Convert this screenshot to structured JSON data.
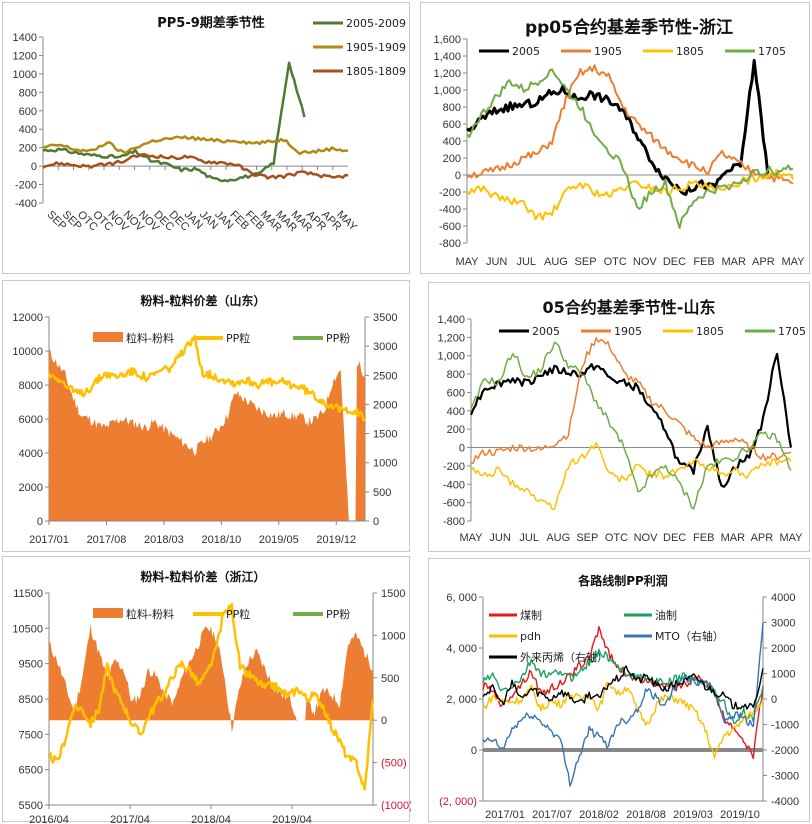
{
  "chart_data": [
    {
      "id": "p1",
      "type": "line",
      "title": "PP5-9期差季节性",
      "ylim": [
        -400,
        1400
      ],
      "yticks": [
        -400,
        -200,
        0,
        200,
        400,
        600,
        800,
        1000,
        1200,
        1400
      ],
      "ytick_labels": [
        "-400",
        "-200",
        "0",
        "200",
        "400",
        "600",
        "800",
        "1000",
        "1200",
        "1400"
      ],
      "x_labels": [
        "SEP",
        "SEP",
        "OTC",
        "OTC",
        "NOV",
        "NOV",
        "NOV",
        "DEC",
        "DEC",
        "JAN",
        "JAN",
        "JAN",
        "FEB",
        "FEB",
        "MAR",
        "MAR",
        "MAR",
        "APR",
        "APR",
        "MAY"
      ],
      "legend_position": "top-right",
      "n_points": 20,
      "series": [
        {
          "name": "2005-2009",
          "color": "#4e7a34",
          "values": [
            170,
            180,
            150,
            120,
            110,
            95,
            160,
            60,
            20,
            -40,
            -30,
            -140,
            -150,
            -120,
            -90,
            40,
            1130,
            530,
            null,
            null
          ]
        },
        {
          "name": "1905-1909",
          "color": "#b08a12",
          "values": [
            200,
            230,
            180,
            160,
            260,
            140,
            220,
            280,
            300,
            310,
            290,
            270,
            280,
            250,
            260,
            290,
            150,
            160,
            190,
            170
          ]
        },
        {
          "name": "1805-1809",
          "color": "#a6501b",
          "values": [
            0,
            30,
            10,
            -5,
            20,
            50,
            120,
            110,
            90,
            100,
            50,
            40,
            20,
            -80,
            -120,
            -110,
            -70,
            -90,
            -130,
            -100
          ]
        }
      ]
    },
    {
      "id": "p2",
      "type": "line",
      "title": "pp05合约基差季节性-浙江",
      "ylim": [
        -800,
        1600
      ],
      "yticks": [
        -800,
        -600,
        -400,
        -200,
        0,
        200,
        400,
        600,
        800,
        1000,
        1200,
        1400,
        1600
      ],
      "ytick_labels": [
        "-800",
        "-600",
        "-400",
        "-200",
        "0",
        "200",
        "400",
        "600",
        "800",
        "1,000",
        "1,200",
        "1,400",
        "1,600"
      ],
      "x_labels": [
        "MAY",
        "JUN",
        "JUL",
        "AUG",
        "SEP",
        "OTC",
        "NOV",
        "DEC",
        "FEB",
        "MAR",
        "APR",
        "MAY"
      ],
      "legend_position": "top",
      "n_points": 24,
      "series": [
        {
          "name": "2005",
          "color": "#000000",
          "width": 3,
          "values": [
            500,
            650,
            750,
            800,
            820,
            850,
            950,
            1000,
            900,
            950,
            900,
            820,
            600,
            300,
            50,
            -100,
            -200,
            -100,
            -150,
            50,
            100,
            1350,
            0,
            null
          ]
        },
        {
          "name": "1905",
          "color": "#ed7d31",
          "width": 2,
          "values": [
            0,
            20,
            50,
            120,
            200,
            250,
            400,
            900,
            1200,
            1250,
            1150,
            800,
            600,
            450,
            300,
            200,
            100,
            50,
            250,
            150,
            50,
            0,
            -50,
            -100
          ]
        },
        {
          "name": "1805",
          "color": "#ffc000",
          "width": 2,
          "values": [
            -200,
            -150,
            -250,
            -300,
            -350,
            -500,
            -450,
            -200,
            -100,
            -200,
            -250,
            -150,
            -100,
            -150,
            -200,
            -150,
            -100,
            -150,
            -200,
            -100,
            -50,
            0,
            20,
            -50
          ]
        },
        {
          "name": "1705",
          "color": "#70ad47",
          "width": 2,
          "values": [
            450,
            700,
            900,
            1100,
            1000,
            1100,
            1250,
            1000,
            800,
            500,
            300,
            100,
            -400,
            -200,
            -100,
            -600,
            -300,
            -200,
            -150,
            -100,
            0,
            50,
            50,
            80
          ]
        }
      ]
    },
    {
      "id": "p3",
      "type": "area",
      "title": "粉料-粒料价差（山东）",
      "ylim": [
        0,
        12000
      ],
      "yticks": [
        0,
        2000,
        4000,
        6000,
        8000,
        10000,
        12000
      ],
      "ytick_labels": [
        "0",
        "2000",
        "4000",
        "6000",
        "8000",
        "10000",
        "12000"
      ],
      "y2lim": [
        0,
        3500
      ],
      "y2ticks": [
        0,
        500,
        1000,
        1500,
        2000,
        2500,
        3000,
        3500
      ],
      "y2tick_labels": [
        "0",
        "500",
        "1000",
        "1500",
        "2000",
        "2500",
        "3000",
        "3500"
      ],
      "x_labels": [
        "2017/01",
        "2017/08",
        "2018/03",
        "2018/10",
        "2019/05",
        "2019/12"
      ],
      "legend_position": "top",
      "n_points": 40,
      "series": [
        {
          "name": "粒料-粉料",
          "kind": "area",
          "axis": "right",
          "color": "#ed7d31",
          "values": [
            2900,
            2700,
            2500,
            2100,
            1800,
            1750,
            1650,
            1600,
            1700,
            1750,
            1700,
            1650,
            1600,
            1700,
            1600,
            1500,
            1400,
            1300,
            1200,
            1350,
            1450,
            1600,
            1800,
            2200,
            2100,
            2000,
            1900,
            1850,
            1800,
            1850,
            1800,
            1800,
            1700,
            1750,
            1900,
            2400,
            2600,
            0,
            2750,
            2500
          ]
        },
        {
          "name": "PP粒",
          "kind": "line",
          "axis": "left",
          "color": "#ffc000",
          "values": [
            8600,
            8500,
            8000,
            7600,
            7500,
            7800,
            8300,
            8700,
            8500,
            8600,
            8800,
            8700,
            8400,
            8600,
            8900,
            9000,
            9600,
            10200,
            10700,
            8700,
            8600,
            8400,
            8300,
            8100,
            8300,
            8200,
            8000,
            8200,
            8100,
            8200,
            8000,
            7900,
            7600,
            7300,
            7000,
            6800,
            6500,
            6600,
            6400,
            6000
          ]
        },
        {
          "name": "PP粉",
          "kind": "line",
          "axis": "left",
          "color": "#70ad47",
          "values": []
        }
      ]
    },
    {
      "id": "p4",
      "type": "line",
      "title": "05合约基差季节性-山东",
      "ylim": [
        -800,
        1400
      ],
      "yticks": [
        -800,
        -600,
        -400,
        -200,
        0,
        200,
        400,
        600,
        800,
        1000,
        1200,
        1400
      ],
      "ytick_labels": [
        "-800",
        "-600",
        "-400",
        "-200",
        "0",
        "200",
        "400",
        "600",
        "800",
        "1,000",
        "1,200",
        "1,400"
      ],
      "x_labels": [
        "MAY",
        "JUN",
        "JUL",
        "AUG",
        "SEP",
        "OTC",
        "NOV",
        "DEC",
        "FEB",
        "MAR",
        "APR",
        "MAY"
      ],
      "legend_position": "top",
      "n_points": 24,
      "series": [
        {
          "name": "2005",
          "color": "#000000",
          "width": 2.2,
          "values": [
            400,
            650,
            700,
            750,
            700,
            800,
            850,
            820,
            800,
            900,
            750,
            700,
            650,
            400,
            200,
            -200,
            -250,
            250,
            -450,
            -200,
            -100,
            300,
            1050,
            0
          ]
        },
        {
          "name": "1905",
          "color": "#ed7d31",
          "width": 1.5,
          "values": [
            -150,
            -50,
            -50,
            0,
            0,
            -30,
            50,
            150,
            900,
            1200,
            1100,
            800,
            700,
            500,
            400,
            250,
            100,
            0,
            50,
            100,
            0,
            -100,
            -100,
            -50
          ]
        },
        {
          "name": "1805",
          "color": "#ffc000",
          "width": 1.5,
          "values": [
            -250,
            -300,
            -250,
            -400,
            -450,
            -600,
            -650,
            -200,
            -100,
            50,
            -300,
            -350,
            -200,
            -300,
            -300,
            -250,
            -150,
            -200,
            -300,
            -250,
            -300,
            -200,
            -150,
            -150
          ]
        },
        {
          "name": "1705",
          "color": "#70ad47",
          "width": 1.5,
          "values": [
            400,
            750,
            700,
            1050,
            750,
            850,
            1150,
            900,
            800,
            500,
            250,
            0,
            -500,
            -300,
            -200,
            -400,
            -650,
            -200,
            -150,
            -100,
            0,
            150,
            100,
            -250
          ]
        }
      ]
    },
    {
      "id": "p5",
      "type": "area",
      "title": "粉料-粒料价差（浙江）",
      "ylim": [
        5500,
        11500
      ],
      "yticks": [
        5500,
        6500,
        7500,
        8500,
        9500,
        10500,
        11500
      ],
      "ytick_labels": [
        "5500",
        "6500",
        "7500",
        "8500",
        "9500",
        "10500",
        "11500"
      ],
      "y2lim": [
        -1000,
        1500
      ],
      "y2ticks": [
        -1000,
        -500,
        0,
        500,
        1000,
        1500
      ],
      "y2tick_labels": [
        "(1000)",
        "(500)",
        "0",
        "500",
        "1000",
        "1500"
      ],
      "x_labels": [
        "2016/04",
        "2017/04",
        "2018/04",
        "2019/04"
      ],
      "legend_position": "top",
      "n_points": 40,
      "series": [
        {
          "name": "粒料-粉料",
          "kind": "area",
          "axis": "right",
          "color": "#ed7d31",
          "values": [
            900,
            700,
            400,
            100,
            500,
            1100,
            800,
            500,
            700,
            600,
            200,
            300,
            600,
            500,
            300,
            200,
            500,
            700,
            900,
            1100,
            1000,
            600,
            -100,
            400,
            700,
            800,
            600,
            400,
            300,
            250,
            0,
            200,
            100,
            350,
            300,
            200,
            900,
            1000,
            800,
            600
          ]
        },
        {
          "name": "PP粒",
          "kind": "line",
          "axis": "left",
          "color": "#ffc000",
          "values": [
            6900,
            6700,
            7400,
            8300,
            8200,
            7800,
            8200,
            9400,
            8700,
            8300,
            7800,
            7500,
            8000,
            8400,
            8700,
            9200,
            9500,
            9300,
            8900,
            9200,
            9800,
            10900,
            11100,
            9400,
            9200,
            9000,
            8800,
            8900,
            8700,
            8600,
            8800,
            8500,
            8600,
            8300,
            7700,
            7300,
            6800,
            6700,
            5900,
            8500
          ]
        },
        {
          "name": "PP粉",
          "kind": "line",
          "axis": "left",
          "color": "#70ad47",
          "values": []
        }
      ]
    },
    {
      "id": "p6",
      "type": "line",
      "title": "各路线制PP利润",
      "ylim": [
        -2000,
        6000
      ],
      "yticks": [
        -2000,
        0,
        2000,
        4000,
        6000
      ],
      "ytick_labels": [
        "(2, 000)",
        "0",
        "2, 000",
        "4, 000",
        "6, 000"
      ],
      "y2lim": [
        -4000,
        4000
      ],
      "y2ticks": [
        -4000,
        -3000,
        -2000,
        -1000,
        0,
        1000,
        2000,
        3000,
        4000
      ],
      "y2tick_labels": [
        "-4000",
        "-3000",
        "-2000",
        "-1000",
        "0",
        "1000",
        "2000",
        "3000",
        "4000"
      ],
      "x_labels": [
        "2017/01",
        "2017/07",
        "2018/02",
        "2018/08",
        "2019/03",
        "2019/10"
      ],
      "legend_position": "top-left",
      "n_points": 30,
      "series": [
        {
          "name": "煤制",
          "axis": "left",
          "color": "#e31a1c",
          "values": [
            2500,
            2400,
            1700,
            2200,
            2600,
            3100,
            2200,
            2400,
            2600,
            2900,
            3300,
            3600,
            4800,
            3800,
            3200,
            3000,
            2700,
            2800,
            2600,
            2500,
            2400,
            2600,
            2800,
            2700,
            2200,
            1200,
            900,
            400,
            -200,
            2500
          ]
        },
        {
          "name": "油制",
          "axis": "left",
          "color": "#1aa260",
          "values": [
            2700,
            2900,
            2300,
            2500,
            2800,
            3500,
            3000,
            2900,
            3100,
            2800,
            3100,
            3400,
            3900,
            3600,
            3200,
            3000,
            2900,
            2800,
            2700,
            2600,
            2800,
            2900,
            2700,
            2600,
            2300,
            1800,
            1000,
            1500,
            1200,
            2500
          ]
        },
        {
          "name": "pdh",
          "axis": "left",
          "color": "#f6c100",
          "values": [
            1600,
            2100,
            1900,
            1900,
            2000,
            2400,
            1600,
            1900,
            1800,
            2200,
            2000,
            2200,
            1600,
            2700,
            2200,
            2500,
            1500,
            1000,
            1800,
            2100,
            2000,
            1800,
            1500,
            800,
            -300,
            600,
            800,
            1200,
            1500,
            2000
          ]
        },
        {
          "name": "MTO（右轴）",
          "axis": "right",
          "color": "#3a74b5",
          "values": [
            -1700,
            -1600,
            -2000,
            -1200,
            -800,
            -600,
            -900,
            -1200,
            -1600,
            -3300,
            -2200,
            -1200,
            -1500,
            -1800,
            -900,
            -800,
            -400,
            400,
            0,
            -200,
            600,
            800,
            600,
            800,
            200,
            -800,
            -600,
            -700,
            -1100,
            3000
          ]
        },
        {
          "name": "外来丙烯（右轴）",
          "axis": "right",
          "color": "#000000",
          "values": [
            200,
            400,
            -200,
            600,
            0,
            400,
            200,
            0,
            300,
            100,
            -200,
            200,
            0,
            600,
            800,
            1200,
            700,
            900,
            500,
            400,
            600,
            700,
            900,
            500,
            300,
            100,
            -300,
            -200,
            -400,
            1200
          ]
        }
      ]
    }
  ]
}
